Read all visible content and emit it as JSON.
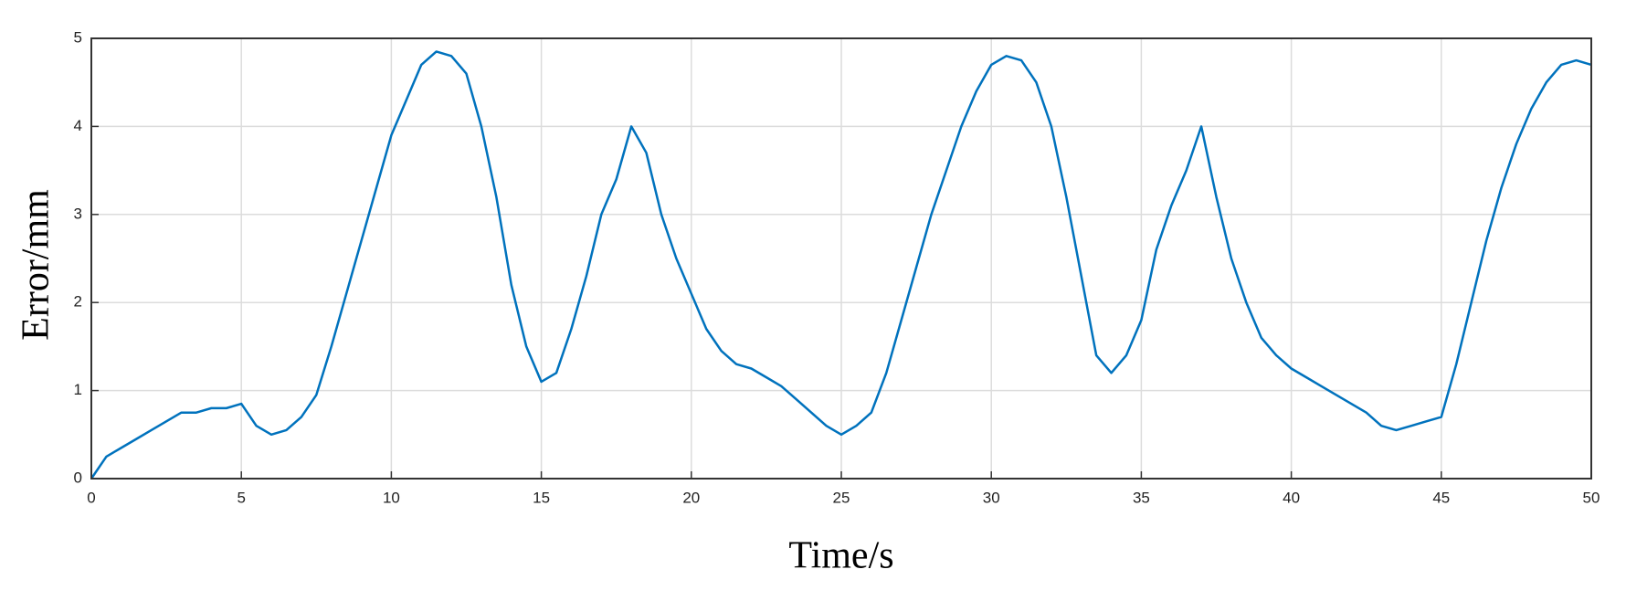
{
  "chart_data": {
    "type": "line",
    "xlabel": "Time/s",
    "ylabel": "Error/mm",
    "x": [
      0,
      0.5,
      1,
      1.5,
      2,
      2.5,
      3,
      3.5,
      4,
      4.5,
      5,
      5.5,
      6,
      6.5,
      7,
      7.5,
      8,
      8.5,
      9,
      9.5,
      10,
      10.5,
      11,
      11.5,
      12,
      12.5,
      13,
      13.5,
      14,
      14.5,
      15,
      15.5,
      16,
      16.5,
      17,
      17.5,
      18,
      18.5,
      19,
      19.5,
      20,
      20.5,
      21,
      21.5,
      22,
      22.5,
      23,
      23.5,
      24,
      24.5,
      25,
      25.5,
      26,
      26.5,
      27,
      27.5,
      28,
      28.5,
      29,
      29.5,
      30,
      30.5,
      31,
      31.5,
      32,
      32.5,
      33,
      33.5,
      34,
      34.5,
      35,
      35.5,
      36,
      36.5,
      37,
      37.5,
      38,
      38.5,
      39,
      39.5,
      40,
      40.5,
      41,
      41.5,
      42,
      42.5,
      43,
      43.5,
      44,
      44.5,
      45,
      45.5,
      46,
      46.5,
      47,
      47.5,
      48,
      48.5,
      49,
      49.5,
      50
    ],
    "values": [
      0,
      0.25,
      0.35,
      0.45,
      0.55,
      0.65,
      0.75,
      0.75,
      0.8,
      0.8,
      0.85,
      0.6,
      0.5,
      0.55,
      0.7,
      0.95,
      1.5,
      2.1,
      2.7,
      3.3,
      3.9,
      4.3,
      4.7,
      4.85,
      4.8,
      4.6,
      4.0,
      3.2,
      2.2,
      1.5,
      1.1,
      1.2,
      1.7,
      2.3,
      3.0,
      3.4,
      4.0,
      3.7,
      3.0,
      2.5,
      2.1,
      1.7,
      1.45,
      1.3,
      1.25,
      1.15,
      1.05,
      0.9,
      0.75,
      0.6,
      0.5,
      0.6,
      0.75,
      1.2,
      1.8,
      2.4,
      3.0,
      3.5,
      4.0,
      4.4,
      4.7,
      4.8,
      4.75,
      4.5,
      4.0,
      3.2,
      2.3,
      1.4,
      1.2,
      1.4,
      1.8,
      2.6,
      3.1,
      3.5,
      4.0,
      3.2,
      2.5,
      2.0,
      1.6,
      1.4,
      1.25,
      1.15,
      1.05,
      0.95,
      0.85,
      0.75,
      0.6,
      0.55,
      0.6,
      0.65,
      0.7,
      1.3,
      2.0,
      2.7,
      3.3,
      3.8,
      4.2,
      4.5,
      4.7,
      4.75,
      4.7
    ],
    "color": "#0072bd",
    "xlim": [
      0,
      50
    ],
    "xticks": [
      0,
      5,
      10,
      15,
      20,
      25,
      30,
      35,
      40,
      45,
      50
    ],
    "ylim": [
      0,
      5
    ],
    "yticks": [
      0,
      1,
      2,
      3,
      4,
      5
    ],
    "grid": true
  }
}
